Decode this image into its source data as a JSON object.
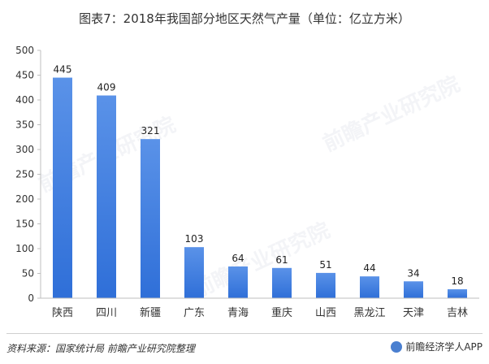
{
  "title": "图表7：2018年我国部分地区天然气产量（单位：亿立方米）",
  "footer": {
    "source": "资料来源：国家统计局 前瞻产业研究院整理",
    "brand": "前瞻经济学人APP"
  },
  "watermarks": [
    "前瞻产业研究院",
    "前瞻产业研究院",
    "前瞻产业研究院"
  ],
  "colors": {
    "bar_top": "#5a92e8",
    "bar_bottom": "#2f6fd8",
    "axis": "#bfbfbf"
  },
  "chart_data": {
    "type": "bar",
    "title": "图表7：2018年我国部分地区天然气产量（单位：亿立方米）",
    "categories": [
      "陕西",
      "四川",
      "新疆",
      "广东",
      "青海",
      "重庆",
      "山西",
      "黑龙江",
      "天津",
      "吉林"
    ],
    "values": [
      445,
      409,
      321,
      103,
      64,
      61,
      51,
      44,
      34,
      18
    ],
    "ylim": [
      0,
      500
    ],
    "yticks": [
      0,
      50,
      100,
      150,
      200,
      250,
      300,
      350,
      400,
      450,
      500
    ],
    "grid": false,
    "data_labels": true
  }
}
